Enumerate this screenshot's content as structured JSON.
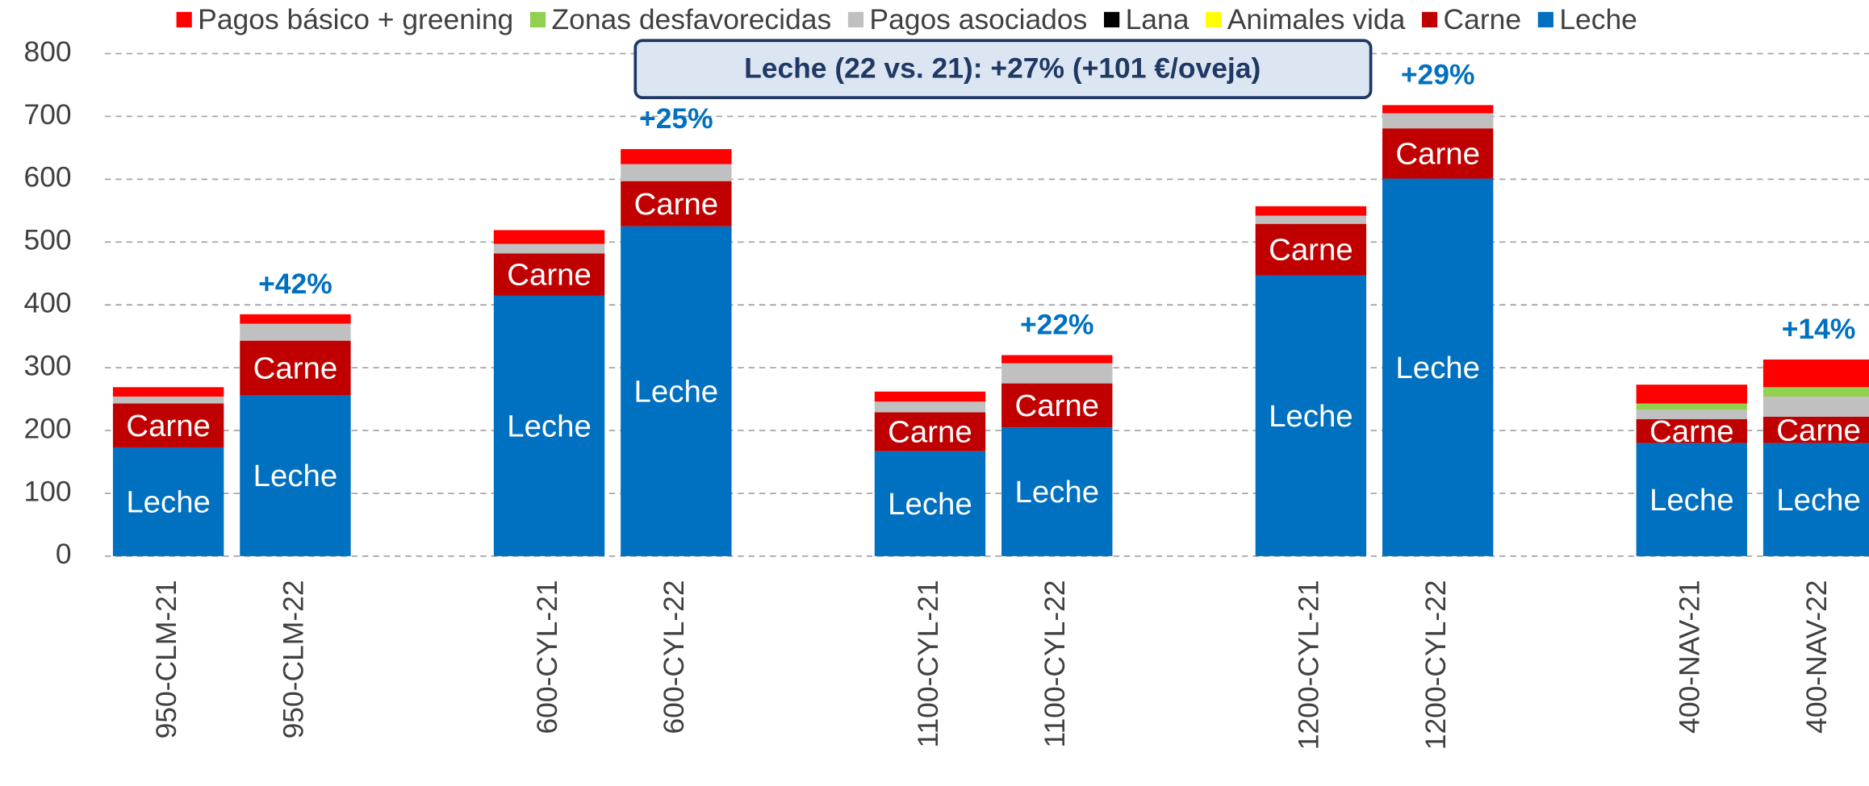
{
  "chart_data": {
    "type": "stacked_bar",
    "categories": [
      "950-CLM-21",
      "950-CLM-22",
      null,
      "600-CYL-21",
      "600-CYL-22",
      null,
      "1100-CYL-21",
      "1100-CYL-22",
      null,
      "1200-CYL-21",
      "1200-CYL-22",
      null,
      "400-NAV-21",
      "400-NAV-22"
    ],
    "series": [
      {
        "name": "Pagos básico + greening",
        "color": "#ff0000",
        "values": [
          15,
          15,
          null,
          22,
          24,
          null,
          16,
          13,
          null,
          15,
          13,
          null,
          30,
          44
        ]
      },
      {
        "name": "Zonas desfavorecidas",
        "color": "#92d050",
        "values": [
          0,
          0,
          null,
          0,
          0,
          null,
          0,
          0,
          null,
          0,
          0,
          null,
          10,
          15
        ]
      },
      {
        "name": "Pagos asociados",
        "color": "#c0c0c0",
        "values": [
          11,
          27,
          null,
          15,
          27,
          null,
          17,
          32,
          null,
          13,
          24,
          null,
          15,
          32
        ]
      },
      {
        "name": "Lana",
        "color": "#000000",
        "values": [
          0,
          0,
          null,
          0,
          0,
          null,
          0,
          0,
          null,
          0,
          0,
          null,
          0,
          0
        ]
      },
      {
        "name": "Animales vida",
        "color": "#ffff00",
        "values": [
          0,
          0,
          null,
          0,
          0,
          null,
          0,
          0,
          null,
          0,
          0,
          null,
          0,
          0
        ]
      },
      {
        "name": "Carne",
        "color": "#c00000",
        "values": [
          70,
          87,
          null,
          67,
          72,
          null,
          62,
          70,
          null,
          82,
          80,
          null,
          38,
          42
        ]
      },
      {
        "name": "Leche",
        "color": "#0070c0",
        "values": [
          173,
          256,
          null,
          415,
          525,
          null,
          167,
          205,
          null,
          447,
          601,
          null,
          180,
          180
        ]
      }
    ],
    "segment_labels": [
      "Carne",
      "Leche"
    ],
    "ylim": [
      0,
      800
    ],
    "yticks": [
      0,
      100,
      200,
      300,
      400,
      500,
      600,
      700,
      800
    ],
    "grid": true,
    "legend": "top",
    "annotations": [
      {
        "label": "+42%",
        "category": "950-CLM-22"
      },
      {
        "label": "+25%",
        "category": "600-CYL-22"
      },
      {
        "label": "+22%",
        "category": "1100-CYL-22"
      },
      {
        "label": "+29%",
        "category": "1200-CYL-22"
      },
      {
        "label": "+14%",
        "category": "400-NAV-22"
      }
    ],
    "callout": "Leche (22 vs. 21): +27% (+101 €/oveja)"
  }
}
